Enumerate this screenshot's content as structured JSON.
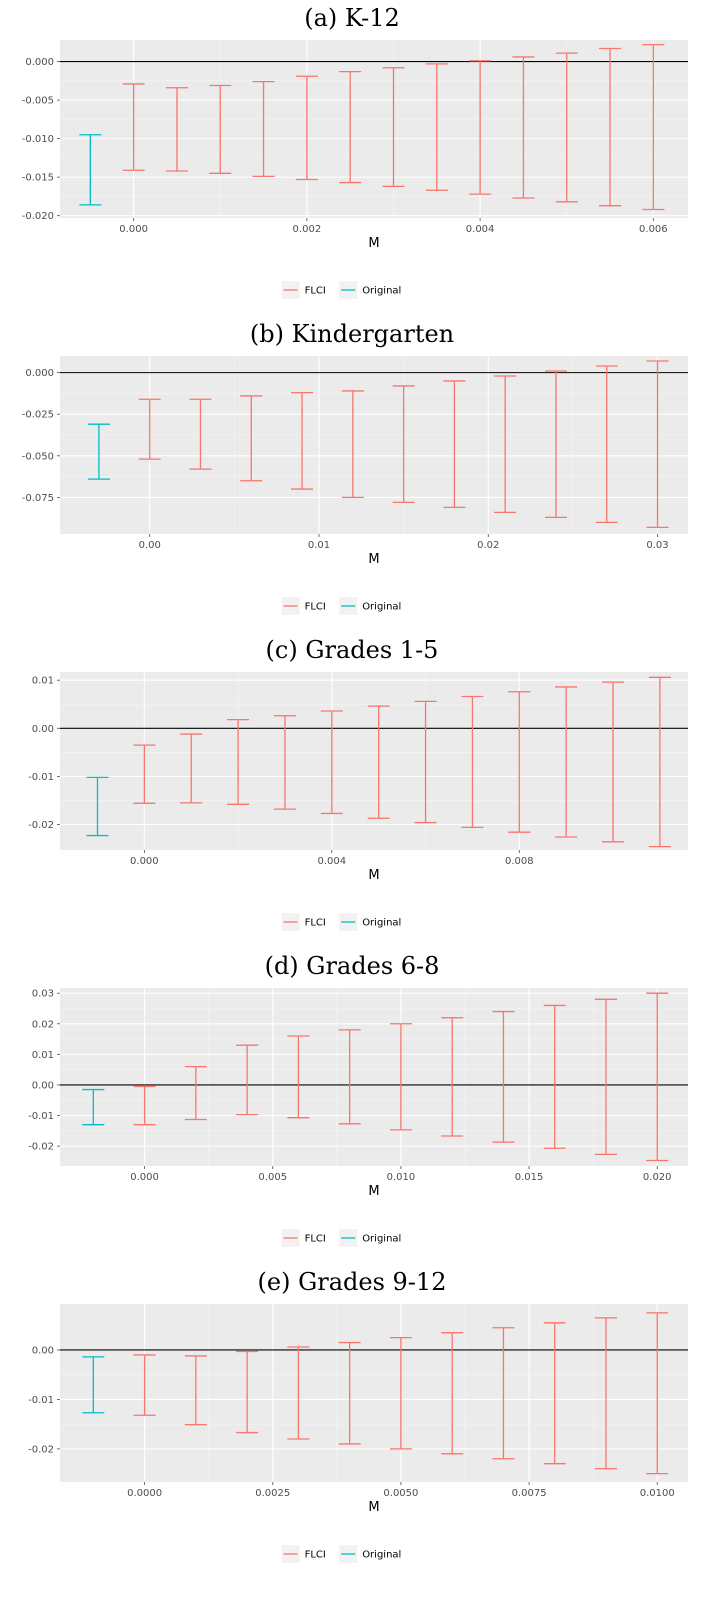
{
  "legend": [
    {
      "name": "FLCI",
      "color": "#F8766D"
    },
    {
      "name": "Original",
      "color": "#00BFC4"
    }
  ],
  "chart_data": [
    {
      "type": "errorbar",
      "title": "(a) K-12",
      "xlabel": "M",
      "ylabel": "",
      "xlim": [
        -0.00085,
        0.0064
      ],
      "ylim": [
        -0.0203,
        0.0028
      ],
      "xticks": [
        0.0,
        0.002,
        0.004,
        0.006
      ],
      "xtick_labels": [
        "0.000",
        "0.002",
        "0.004",
        "0.006"
      ],
      "yticks": [
        -0.02,
        -0.015,
        -0.01,
        -0.005,
        0.0
      ],
      "ytick_labels": [
        "-0.020",
        "-0.015",
        "-0.010",
        "-0.005",
        "0.000"
      ],
      "hline": 0,
      "grid": true,
      "legend_position": "bottom",
      "series": [
        {
          "name": "Original",
          "x": [
            -0.0005
          ],
          "lower": [
            -0.0186
          ],
          "upper": [
            -0.0095
          ]
        },
        {
          "name": "FLCI",
          "x": [
            0.0,
            0.0005,
            0.001,
            0.0015,
            0.002,
            0.0025,
            0.003,
            0.0035,
            0.004,
            0.0045,
            0.005,
            0.0055,
            0.006
          ],
          "lower": [
            -0.0141,
            -0.0142,
            -0.0145,
            -0.0149,
            -0.0153,
            -0.0157,
            -0.0162,
            -0.0167,
            -0.0172,
            -0.0177,
            -0.0182,
            -0.0187,
            -0.0192
          ],
          "upper": [
            -0.0029,
            -0.0034,
            -0.0031,
            -0.0026,
            -0.0019,
            -0.0013,
            -0.0008,
            -0.0003,
            0.0001,
            0.0006,
            0.0011,
            0.0017,
            0.0022
          ]
        }
      ]
    },
    {
      "type": "errorbar",
      "title": "(b) Kindergarten",
      "xlabel": "M",
      "ylabel": "",
      "xlim": [
        -0.0053,
        0.0318
      ],
      "ylim": [
        -0.097,
        0.01
      ],
      "xticks": [
        0.0,
        0.01,
        0.02,
        0.03
      ],
      "xtick_labels": [
        "0.00",
        "0.01",
        "0.02",
        "0.03"
      ],
      "yticks": [
        -0.075,
        -0.05,
        -0.025,
        0.0
      ],
      "ytick_labels": [
        "-0.075",
        "-0.050",
        "-0.025",
        "0.000"
      ],
      "hline": 0,
      "grid": true,
      "legend_position": "bottom",
      "series": [
        {
          "name": "Original",
          "x": [
            -0.003
          ],
          "lower": [
            -0.064
          ],
          "upper": [
            -0.031
          ]
        },
        {
          "name": "FLCI",
          "x": [
            0.0,
            0.003,
            0.006,
            0.009,
            0.012,
            0.015,
            0.018,
            0.021,
            0.024,
            0.027,
            0.03
          ],
          "lower": [
            -0.052,
            -0.058,
            -0.065,
            -0.07,
            -0.075,
            -0.078,
            -0.081,
            -0.084,
            -0.087,
            -0.09,
            -0.093
          ],
          "upper": [
            -0.016,
            -0.016,
            -0.014,
            -0.012,
            -0.011,
            -0.008,
            -0.005,
            -0.002,
            0.001,
            0.004,
            0.007
          ]
        }
      ]
    },
    {
      "type": "errorbar",
      "title": "(c) Grades 1-5",
      "xlabel": "M",
      "ylabel": "",
      "xlim": [
        -0.0018,
        0.0116
      ],
      "ylim": [
        -0.0253,
        0.0117
      ],
      "xticks": [
        0.0,
        0.004,
        0.008
      ],
      "xtick_labels": [
        "0.000",
        "0.004",
        "0.008"
      ],
      "yticks": [
        -0.02,
        -0.01,
        0.0,
        0.01
      ],
      "ytick_labels": [
        "-0.02",
        "-0.01",
        "0.00",
        "0.01"
      ],
      "hline": 0,
      "grid": true,
      "legend_position": "bottom",
      "series": [
        {
          "name": "Original",
          "x": [
            -0.001
          ],
          "lower": [
            -0.0223
          ],
          "upper": [
            -0.0102
          ]
        },
        {
          "name": "FLCI",
          "x": [
            0.0,
            0.001,
            0.002,
            0.003,
            0.004,
            0.005,
            0.006,
            0.007,
            0.008,
            0.009,
            0.01,
            0.011
          ],
          "lower": [
            -0.0156,
            -0.0155,
            -0.0158,
            -0.0168,
            -0.0177,
            -0.0187,
            -0.0196,
            -0.0206,
            -0.0216,
            -0.0226,
            -0.0236,
            -0.0246
          ],
          "upper": [
            -0.0035,
            -0.0012,
            0.0018,
            0.0026,
            0.0036,
            0.0046,
            0.0056,
            0.0066,
            0.0076,
            0.0086,
            0.0096,
            0.0106
          ]
        }
      ]
    },
    {
      "type": "errorbar",
      "title": "(d) Grades 6-8",
      "xlabel": "M",
      "ylabel": "",
      "xlim": [
        -0.0033,
        0.0212
      ],
      "ylim": [
        -0.0265,
        0.0317
      ],
      "xticks": [
        0.0,
        0.005,
        0.01,
        0.015,
        0.02
      ],
      "xtick_labels": [
        "0.000",
        "0.005",
        "0.010",
        "0.015",
        "0.020"
      ],
      "yticks": [
        -0.02,
        -0.01,
        0.0,
        0.01,
        0.02,
        0.03
      ],
      "ytick_labels": [
        "-0.02",
        "-0.01",
        "0.00",
        "0.01",
        "0.02",
        "0.03"
      ],
      "hline": 0,
      "grid": true,
      "legend_position": "bottom",
      "series": [
        {
          "name": "Original",
          "x": [
            -0.002
          ],
          "lower": [
            -0.013
          ],
          "upper": [
            -0.0015
          ]
        },
        {
          "name": "FLCI",
          "x": [
            0.0,
            0.002,
            0.004,
            0.006,
            0.008,
            0.01,
            0.012,
            0.014,
            0.016,
            0.018,
            0.02
          ],
          "lower": [
            -0.013,
            -0.0113,
            -0.0097,
            -0.0107,
            -0.0127,
            -0.0147,
            -0.0167,
            -0.0187,
            -0.0207,
            -0.0227,
            -0.0247
          ],
          "upper": [
            -0.0005,
            0.006,
            0.013,
            0.016,
            0.018,
            0.02,
            0.022,
            0.024,
            0.026,
            0.028,
            0.03
          ]
        }
      ]
    },
    {
      "type": "errorbar",
      "title": "(e) Grades 9-12",
      "xlabel": "M",
      "ylabel": "",
      "xlim": [
        -0.00165,
        0.0106
      ],
      "ylim": [
        -0.0267,
        0.0093
      ],
      "xticks": [
        0.0,
        0.0025,
        0.005,
        0.0075,
        0.01
      ],
      "xtick_labels": [
        "0.0000",
        "0.0025",
        "0.0050",
        "0.0075",
        "0.0100"
      ],
      "yticks": [
        -0.02,
        -0.01,
        0.0
      ],
      "ytick_labels": [
        "-0.02",
        "-0.01",
        "0.00"
      ],
      "hline": 0,
      "grid": true,
      "legend_position": "bottom",
      "series": [
        {
          "name": "Original",
          "x": [
            -0.001
          ],
          "lower": [
            -0.0127
          ],
          "upper": [
            -0.0014
          ]
        },
        {
          "name": "FLCI",
          "x": [
            0.0,
            0.001,
            0.002,
            0.003,
            0.004,
            0.005,
            0.006,
            0.007,
            0.008,
            0.009,
            0.01
          ],
          "lower": [
            -0.0132,
            -0.0151,
            -0.0167,
            -0.018,
            -0.019,
            -0.02,
            -0.021,
            -0.022,
            -0.023,
            -0.024,
            -0.025
          ],
          "upper": [
            -0.001,
            -0.0012,
            -0.0003,
            0.0006,
            0.0015,
            0.0025,
            0.0035,
            0.0045,
            0.0055,
            0.0065,
            0.0075
          ]
        }
      ]
    }
  ]
}
